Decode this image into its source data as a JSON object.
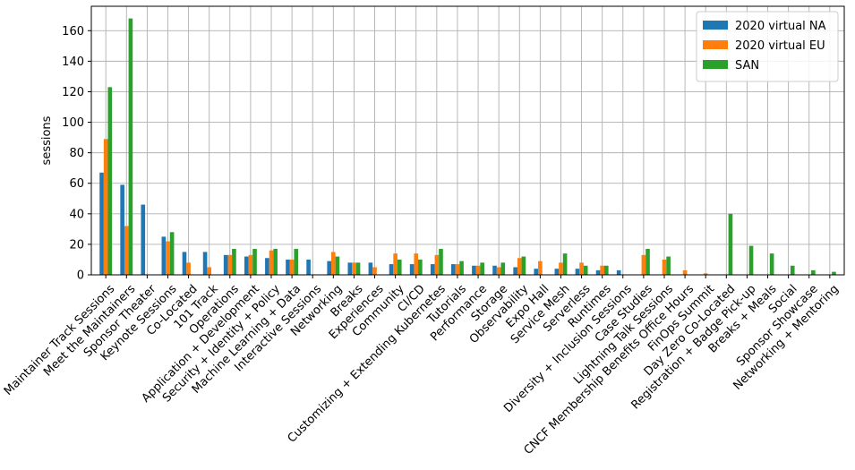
{
  "chart_data": {
    "type": "bar",
    "ylabel": "sessions",
    "xlabel": "",
    "title": "",
    "ylim": [
      0,
      176
    ],
    "yticks": [
      0,
      20,
      40,
      60,
      80,
      100,
      120,
      140,
      160
    ],
    "grid": true,
    "legend_position": "top-right",
    "categories": [
      "Maintainer Track Sessions",
      "Meet the Maintainers",
      "Sponsor Theater",
      "Keynote Sessions",
      "Co-Located",
      "101 Track",
      "Operations",
      "Application + Development",
      "Security + Identity + Policy",
      "Machine Learning + Data",
      "Interactive Sessions",
      "Networking",
      "Breaks",
      "Experiences",
      "Community",
      "CI/CD",
      "Customizing + Extending Kubernetes",
      "Tutorials",
      "Performance",
      "Storage",
      "Observability",
      "Expo Hall",
      "Service Mesh",
      "Serverless",
      "Runtimes",
      "Diversity + Inclusion Sessions",
      "Case Studies",
      "Lightning Talk Sessions",
      "CNCF Membership Benefits Office Hours",
      "FinOps Summit",
      "Day Zero Co-Located",
      "Registration + Badge Pick-up",
      "Breaks + Meals",
      "Social",
      "Sponsor Showcase",
      "Networking + Mentoring"
    ],
    "series": [
      {
        "name": "2020 virtual NA",
        "color": "#1f77b4",
        "values": [
          67,
          59,
          46,
          25,
          15,
          15,
          13,
          12,
          11,
          10,
          10,
          9,
          8,
          8,
          7,
          7,
          7,
          7,
          6,
          6,
          5,
          4,
          4,
          4,
          3,
          3,
          0,
          0,
          0,
          0,
          0,
          0,
          0,
          0,
          0,
          0
        ]
      },
      {
        "name": "2020 virtual EU",
        "color": "#ff7f0e",
        "values": [
          89,
          32,
          0,
          22,
          8,
          5,
          13,
          13,
          16,
          10,
          0,
          15,
          8,
          5,
          14,
          14,
          13,
          7,
          6,
          5,
          11,
          9,
          8,
          8,
          6,
          0,
          13,
          10,
          3,
          1,
          0,
          0,
          0,
          0,
          0,
          0
        ]
      },
      {
        "name": "SAN",
        "color": "#2ca02c",
        "values": [
          123,
          168,
          0,
          28,
          0,
          0,
          17,
          17,
          17,
          17,
          0,
          12,
          8,
          0,
          10,
          10,
          17,
          9,
          8,
          8,
          12,
          0,
          14,
          6,
          6,
          0,
          17,
          12,
          0,
          0,
          40,
          19,
          14,
          6,
          3,
          2
        ]
      }
    ]
  }
}
